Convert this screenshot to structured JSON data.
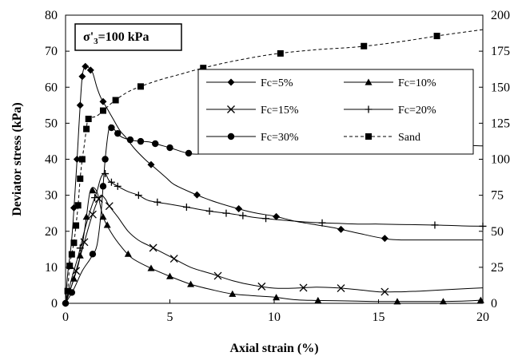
{
  "chart_data": {
    "type": "line",
    "annotation": {
      "main": "σ'",
      "sub": "3",
      "rest": "=100 kPa"
    },
    "xlabel": "Axial strain (%)",
    "ylabel": "Deviator stress (kPa)",
    "xlim": [
      0,
      20
    ],
    "ylim": [
      0,
      80
    ],
    "y2lim": [
      0,
      200
    ],
    "xticks": [
      "0",
      "5",
      "10",
      "15",
      "20"
    ],
    "yticks": [
      "0",
      "10",
      "20",
      "30",
      "40",
      "50",
      "60",
      "70",
      "80"
    ],
    "y2ticks": [
      "0",
      "25",
      "50",
      "75",
      "100",
      "125",
      "150",
      "175",
      "200"
    ],
    "grid": false,
    "legend_position": "top-right",
    "series": [
      {
        "name": "Fc=5%",
        "marker": "diamond",
        "dash": "none",
        "axis": "left",
        "x": [
          0,
          0.1,
          0.3,
          0.5,
          0.6,
          0.7,
          0.8,
          0.9,
          1.0,
          1.1,
          1.3,
          1.5,
          1.7,
          2.0,
          2.3,
          2.6,
          2.9,
          3.3,
          3.8,
          4.2,
          4.8,
          5.2,
          6.0,
          7.0,
          8.0,
          9.0,
          10.0,
          11.0,
          12.0,
          13.0,
          14.0,
          15.5,
          17.0,
          20.0
        ],
        "y": [
          0,
          8,
          18,
          35,
          45,
          55,
          63,
          65.5,
          66,
          65.5,
          64,
          60,
          57,
          54,
          51,
          48,
          46,
          43,
          40,
          38,
          35,
          33,
          30.8,
          28.5,
          26.7,
          25.2,
          24.2,
          22.8,
          21.8,
          20.8,
          19.5,
          17.8,
          17.6,
          17.6
        ],
        "markers_at": [
          0,
          0.4,
          0.55,
          0.7,
          0.8,
          0.95,
          1.2,
          1.8,
          4.1,
          6.3,
          8.3,
          10.1,
          13.2,
          15.3
        ]
      },
      {
        "name": "Fc=10%",
        "marker": "triangle",
        "dash": "none",
        "axis": "left",
        "x": [
          0,
          0.3,
          0.6,
          0.8,
          1.0,
          1.2,
          1.5,
          1.8,
          2.2,
          2.7,
          3.2,
          4.0,
          5.0,
          6.0,
          7.0,
          8.0,
          9.0,
          10.0,
          11.0,
          12.0,
          13.0,
          14.0,
          15.0,
          16.0,
          17.0,
          18.0,
          19.0,
          20.0
        ],
        "y": [
          0,
          5,
          10.5,
          16,
          24,
          31.5,
          31,
          24,
          19.5,
          15.5,
          12.5,
          10,
          7.5,
          5.3,
          3.8,
          2.6,
          2.1,
          1.7,
          1.0,
          0.8,
          0.7,
          0.6,
          0.5,
          0.5,
          0.5,
          0.5,
          0.6,
          0.9
        ],
        "markers_at": [
          0.2,
          0.4,
          0.7,
          1.0,
          1.3,
          1.8,
          2.0,
          3.0,
          4.1,
          5.0,
          6.0,
          8.0,
          10.1,
          12.1,
          15.9,
          18.1,
          19.9
        ]
      },
      {
        "name": "Fc=15%",
        "marker": "x",
        "dash": "none",
        "axis": "left",
        "x": [
          0,
          0.3,
          0.6,
          0.9,
          1.2,
          1.5,
          1.7,
          1.9,
          2.1,
          2.5,
          3.0,
          3.5,
          4.0,
          5.0,
          6.0,
          7.0,
          8.0,
          9.0,
          10.0,
          11.0,
          12.0,
          13.0,
          14.0,
          15.0,
          16.0,
          17.0,
          18.0,
          19.0,
          20.0
        ],
        "y": [
          0,
          5,
          11,
          17,
          23,
          28,
          30,
          29,
          27,
          24,
          20,
          17.5,
          16,
          13,
          10,
          8.2,
          6.3,
          5.0,
          4.2,
          4.2,
          4.5,
          4.3,
          3.8,
          3.2,
          3.2,
          3.4,
          3.7,
          4.0,
          4.3
        ],
        "markers_at": [
          0.5,
          0.9,
          1.3,
          1.6,
          2.1,
          4.2,
          5.2,
          7.3,
          9.4,
          11.4,
          13.2,
          15.3
        ]
      },
      {
        "name": "Fc=20%",
        "marker": "plus",
        "dash": "none",
        "axis": "left",
        "x": [
          0,
          0.3,
          0.6,
          0.9,
          1.2,
          1.5,
          1.7,
          1.9,
          2.1,
          2.5,
          3.0,
          3.5,
          4.0,
          5.0,
          6.0,
          7.0,
          8.0,
          9.0,
          10.0,
          11.0,
          12.0,
          13.0,
          14.0,
          15.0,
          16.0,
          17.0,
          18.0,
          19.0,
          20.0
        ],
        "y": [
          0,
          7,
          13,
          20,
          26,
          31,
          35,
          36,
          34,
          32.5,
          31,
          30,
          28.5,
          27.5,
          26.5,
          25.5,
          24.8,
          23.9,
          23.3,
          22.8,
          22.4,
          22.2,
          22.0,
          22.0,
          21.9,
          21.8,
          21.7,
          21.5,
          21.4
        ],
        "markers_at": [
          0.7,
          1.4,
          1.9,
          2.2,
          2.5,
          3.5,
          4.4,
          5.8,
          6.9,
          7.7,
          8.5,
          9.6,
          12.3,
          17.7,
          20.0
        ]
      },
      {
        "name": "Fc=30%",
        "marker": "circle",
        "dash": "none",
        "axis": "left",
        "x": [
          0,
          0.4,
          0.8,
          1.2,
          1.5,
          1.7,
          1.9,
          2.1,
          2.3,
          2.6,
          3.0,
          3.5,
          4.0,
          4.5,
          5.0,
          6.0,
          7.0,
          8.0,
          9.0,
          10.0,
          11.0,
          12.0,
          13.0,
          14.0,
          15.0,
          16.0,
          17.0,
          18.0,
          19.0,
          20.0
        ],
        "y": [
          0,
          4,
          9,
          12.5,
          16,
          25,
          40,
          49,
          48.5,
          46.5,
          45.5,
          45,
          44.8,
          44,
          43.2,
          41.5,
          41.6,
          41.7,
          41.8,
          42,
          42.1,
          42.2,
          42.4,
          42.8,
          43.2,
          43.6,
          43.9,
          44.0,
          43.9,
          43.7
        ],
        "markers_at": [
          0,
          0.3,
          1.3,
          1.8,
          1.9,
          2.2,
          2.5,
          3.1,
          3.6,
          4.3,
          5.0,
          5.9,
          13.3,
          18.6
        ]
      },
      {
        "name": "Sand",
        "marker": "square",
        "dash": "dashed",
        "axis": "right",
        "x": [
          0,
          0.1,
          0.2,
          0.4,
          0.5,
          0.6,
          0.7,
          0.8,
          0.9,
          1.0,
          1.1,
          1.5,
          1.9,
          2.3,
          2.9,
          3.5,
          4.5,
          5.5,
          6.5,
          8.0,
          10.0,
          12.0,
          14.0,
          16.0,
          18.0,
          20.0
        ],
        "y": [
          0,
          8.5,
          26,
          42,
          54,
          68,
          86.5,
          100,
          110,
          121,
          128,
          130,
          135,
          140,
          146,
          150,
          155,
          159,
          163,
          168,
          173,
          176,
          178,
          181.5,
          186,
          190
        ],
        "markers_at": [
          0.1,
          0.2,
          0.3,
          0.4,
          0.5,
          0.6,
          0.7,
          0.8,
          1.0,
          1.1,
          1.8,
          2.4,
          3.6,
          6.6,
          10.3,
          14.3,
          17.8
        ]
      }
    ]
  }
}
